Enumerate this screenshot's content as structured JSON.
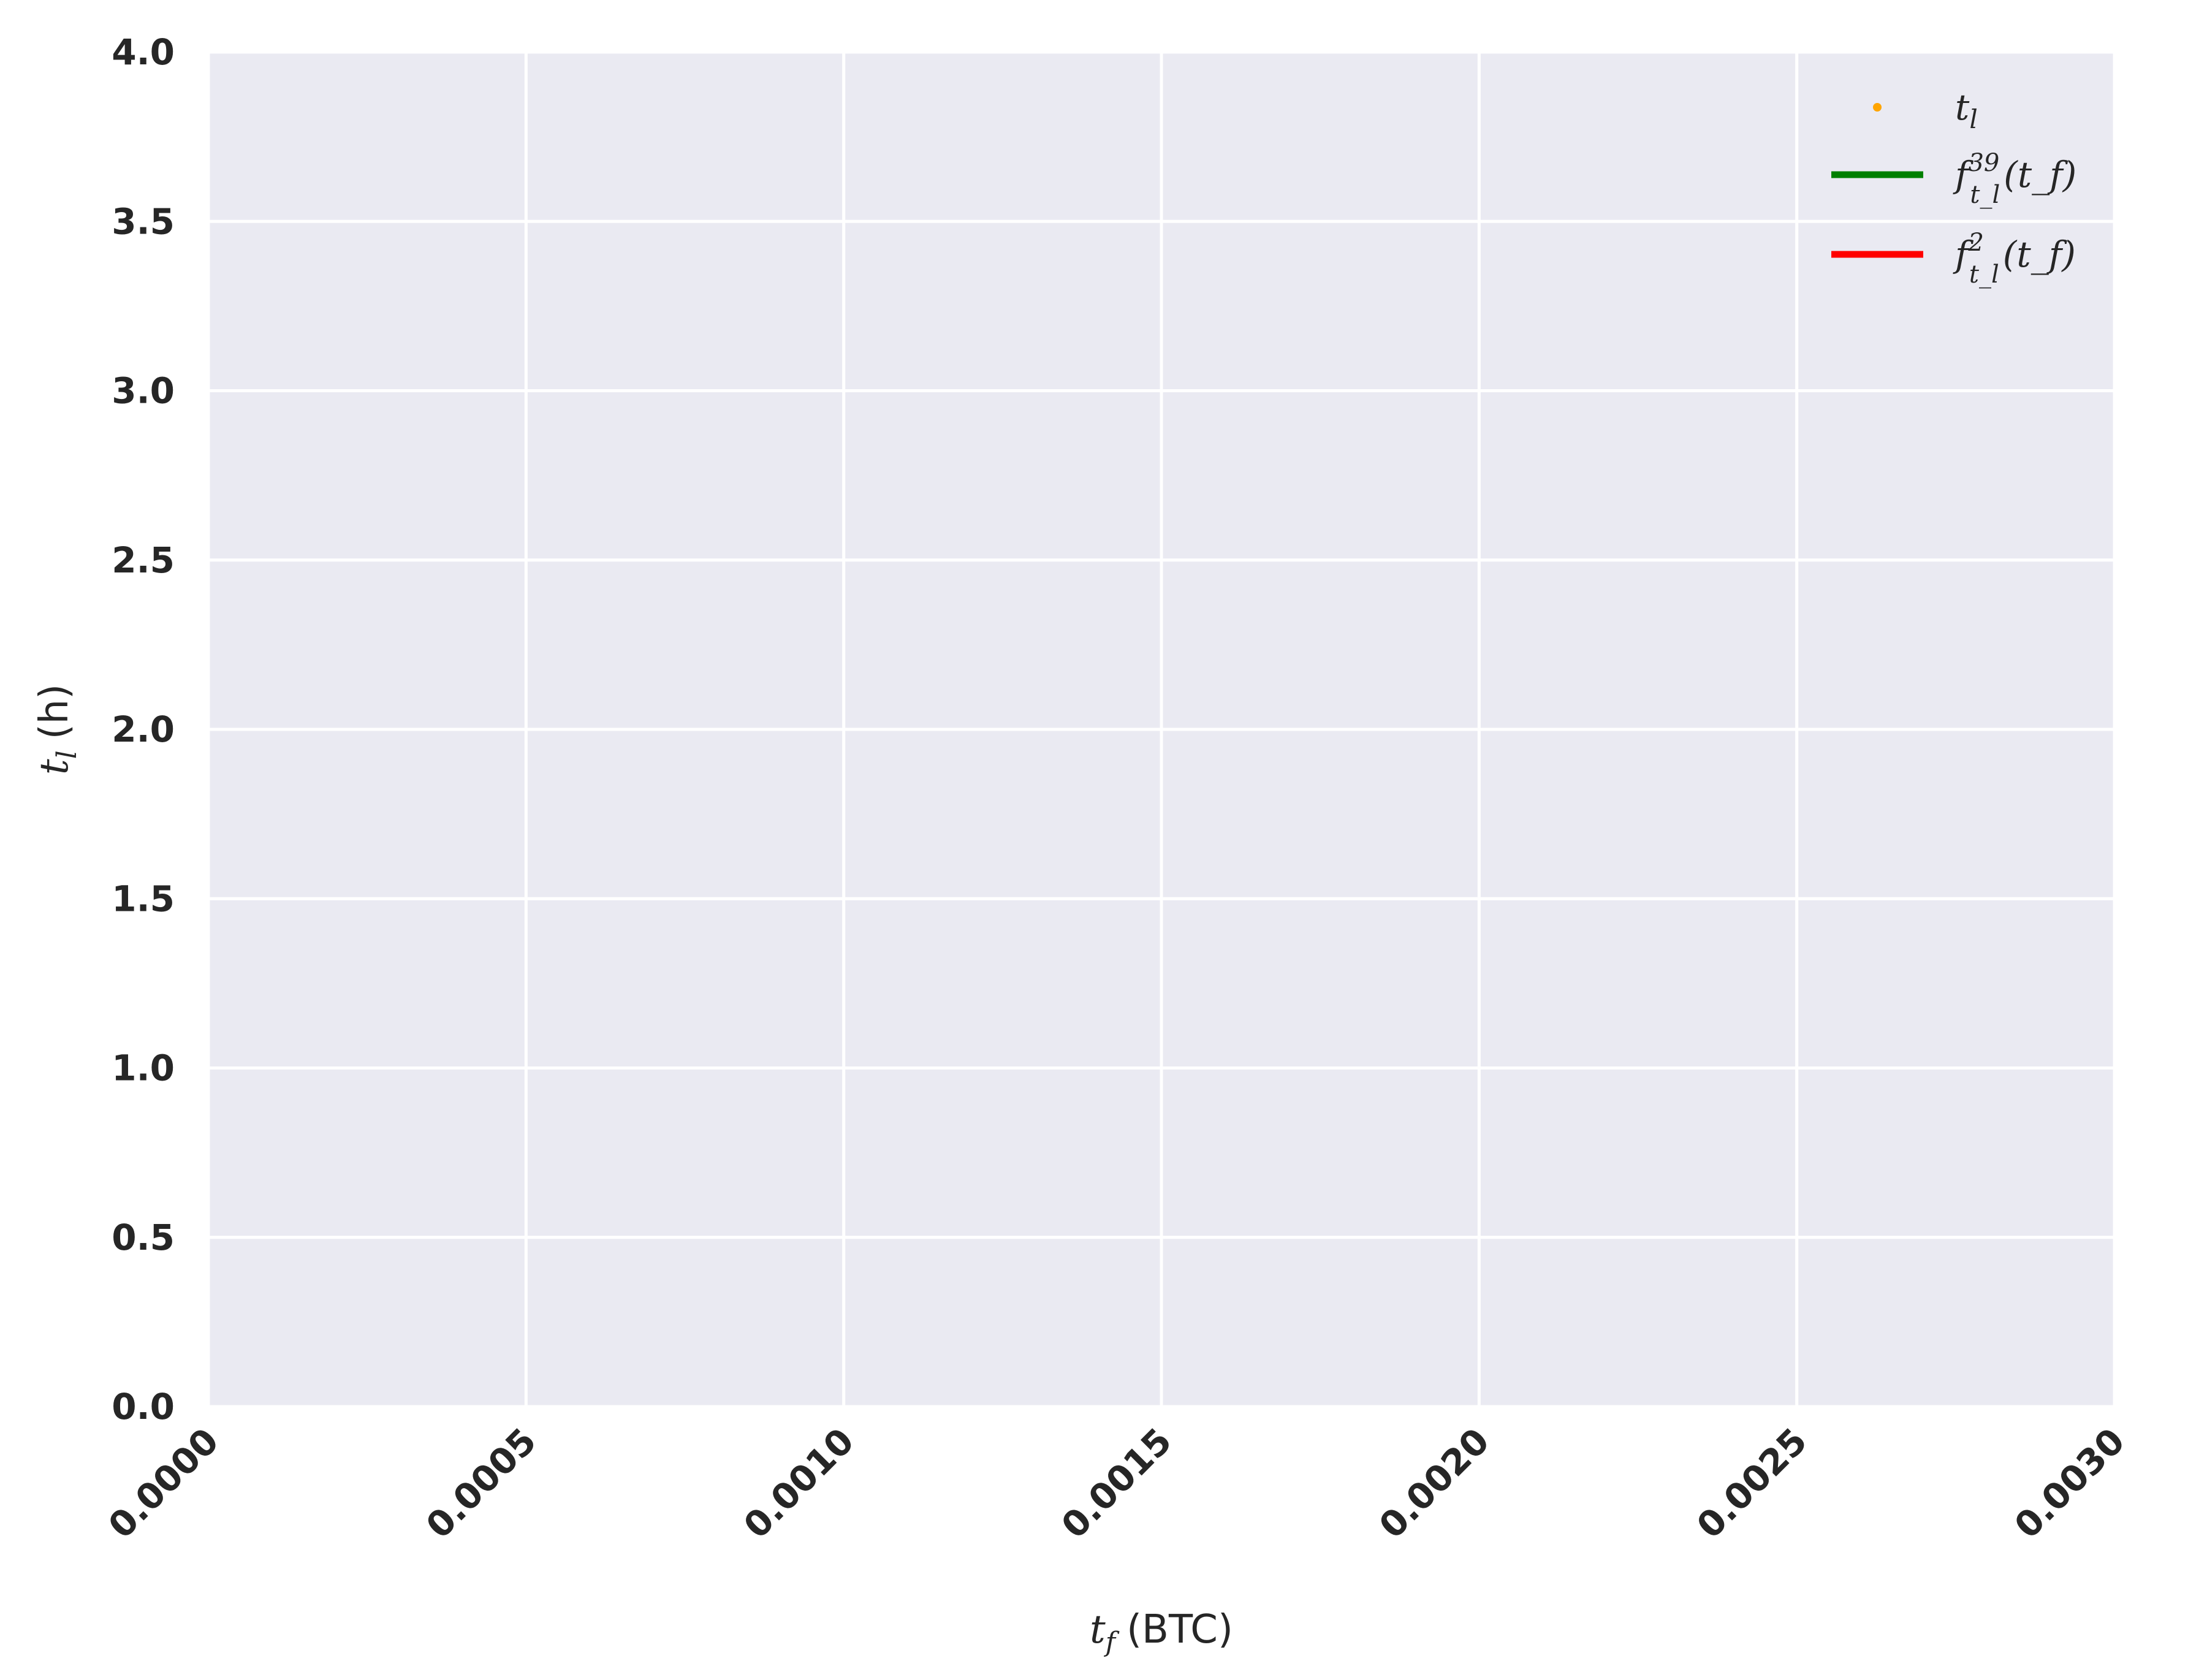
{
  "chart_data": {
    "type": "line",
    "title": "",
    "xlabel": {
      "var": "t",
      "sub": "f",
      "unit": "(BTC)"
    },
    "ylabel": {
      "var": "t",
      "sub": "l",
      "unit": "(h)"
    },
    "xlim": [
      0,
      0.003
    ],
    "ylim": [
      0,
      4
    ],
    "xticks": [
      "0.0000",
      "0.0005",
      "0.0010",
      "0.0015",
      "0.0020",
      "0.0025",
      "0.0030"
    ],
    "yticks": [
      "0.0",
      "0.5",
      "1.0",
      "1.5",
      "2.0",
      "2.5",
      "3.0",
      "3.5",
      "4.0"
    ],
    "grid": true,
    "legend_position": "top-right",
    "series": [
      {
        "name": "t_l",
        "label": {
          "main": "t",
          "sub": "l",
          "sup": "",
          "arg": ""
        },
        "kind": "scatter",
        "color": "#ffa500",
        "points": []
      },
      {
        "name": "f^39_{t_l}(t_f)",
        "label": {
          "main": "f",
          "sub": "t_l",
          "sup": "39",
          "arg": "(t_f)"
        },
        "kind": "line",
        "color": "#008000",
        "points": []
      },
      {
        "name": "f^2_{t_l}(t_f)",
        "label": {
          "main": "f",
          "sub": "t_l",
          "sup": "2",
          "arg": "(t_f)"
        },
        "kind": "line",
        "color": "#ff0000",
        "points": []
      }
    ]
  },
  "colors": {
    "plot_background": "#eaeaf2",
    "grid": "#ffffff",
    "text": "#262626"
  }
}
